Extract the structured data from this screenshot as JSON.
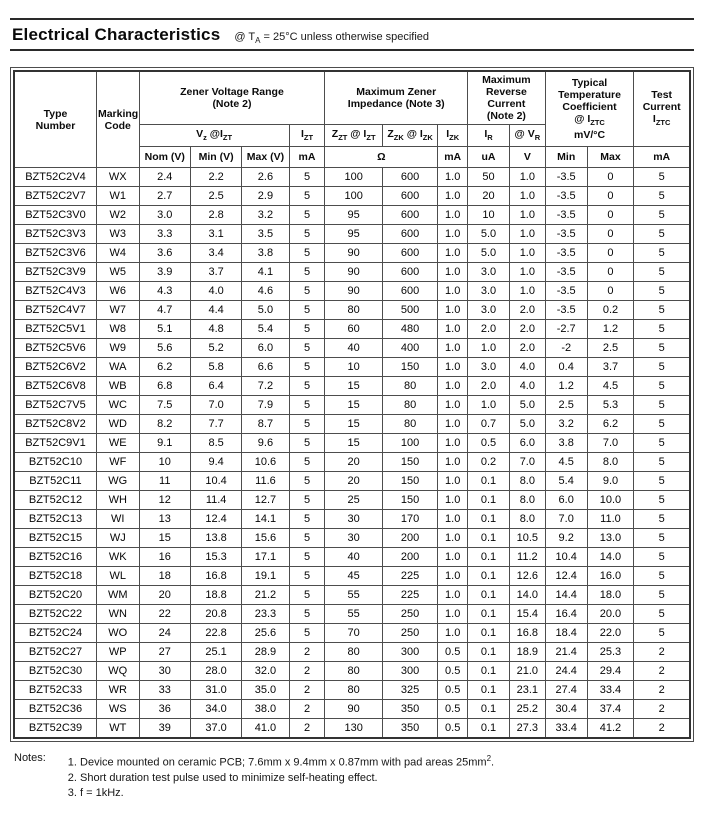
{
  "header": {
    "title": "Electrical Characteristics",
    "condition": [
      [
        [
          "@ T",
          0
        ],
        [
          "A",
          1
        ],
        [
          " = 25°C unless otherwise specified",
          0
        ]
      ]
    ]
  },
  "table": {
    "headers": {
      "type_number": [
        [
          [
            "Type",
            0
          ]
        ],
        [
          [
            "Number",
            0
          ]
        ]
      ],
      "marking_code": [
        [
          [
            "Marking",
            0
          ]
        ],
        [
          [
            "Code",
            0
          ]
        ]
      ],
      "zener_voltage_range": [
        [
          [
            "Zener Voltage Range",
            0
          ]
        ],
        [
          [
            "(Note 2)",
            0
          ]
        ]
      ],
      "max_zener_impedance": [
        [
          [
            "Maximum Zener",
            0
          ]
        ],
        [
          [
            "Impedance (Note 3)",
            0
          ]
        ]
      ],
      "max_reverse_current": [
        [
          [
            "Maximum",
            0
          ]
        ],
        [
          [
            "Reverse",
            0
          ]
        ],
        [
          [
            "Current",
            0
          ]
        ],
        [
          [
            "(Note 2)",
            0
          ]
        ]
      ],
      "typ_temp_coefficient": [
        [
          [
            "Typical",
            0
          ]
        ],
        [
          [
            "Temperature",
            0
          ]
        ],
        [
          [
            "Coefficient",
            0
          ]
        ],
        [
          [
            "@ I",
            0
          ],
          [
            "ZTC",
            1
          ]
        ],
        [
          [
            "mV/°C",
            0
          ]
        ]
      ],
      "test_current": [
        [
          [
            "Test",
            0
          ]
        ],
        [
          [
            "Current",
            0
          ]
        ],
        [
          [
            "I",
            0
          ],
          [
            "ZTC",
            1
          ]
        ]
      ],
      "vz_at_izt": [
        [
          [
            "V",
            0
          ],
          [
            "z",
            1
          ],
          [
            " @I",
            0
          ],
          [
            "ZT",
            1
          ]
        ]
      ],
      "izt": [
        [
          [
            "I",
            0
          ],
          [
            "ZT",
            1
          ]
        ]
      ],
      "zzt_at_izt": [
        [
          [
            "Z",
            0
          ],
          [
            "ZT",
            1
          ],
          [
            " @ I",
            0
          ],
          [
            "ZT",
            1
          ]
        ]
      ],
      "zzk_at_izk": [
        [
          [
            "Z",
            0
          ],
          [
            "ZK",
            1
          ],
          [
            " @ I",
            0
          ],
          [
            "ZK",
            1
          ]
        ]
      ],
      "izk": [
        [
          [
            "I",
            0
          ],
          [
            "ZK",
            1
          ]
        ]
      ],
      "ir": [
        [
          [
            "I",
            0
          ],
          [
            "R",
            1
          ]
        ]
      ],
      "at_vr": [
        [
          [
            "@ V",
            0
          ],
          [
            "R",
            1
          ]
        ]
      ]
    },
    "units": {
      "nom": "Nom (V)",
      "min": "Min (V)",
      "max": "Max (V)",
      "izt_ma": "mA",
      "ohm": "Ω",
      "izk_ma": "mA",
      "ir_ua": "uA",
      "vr_v": "V",
      "tc_min": "Min",
      "tc_max": "Max",
      "iztc_ma": "mA"
    },
    "rows": [
      [
        "BZT52C2V4",
        "WX",
        "2.4",
        "2.2",
        "2.6",
        "5",
        "100",
        "600",
        "1.0",
        "50",
        "1.0",
        "-3.5",
        "0",
        "5"
      ],
      [
        "BZT52C2V7",
        "W1",
        "2.7",
        "2.5",
        "2.9",
        "5",
        "100",
        "600",
        "1.0",
        "20",
        "1.0",
        "-3.5",
        "0",
        "5"
      ],
      [
        "BZT52C3V0",
        "W2",
        "3.0",
        "2.8",
        "3.2",
        "5",
        "95",
        "600",
        "1.0",
        "10",
        "1.0",
        "-3.5",
        "0",
        "5"
      ],
      [
        "BZT52C3V3",
        "W3",
        "3.3",
        "3.1",
        "3.5",
        "5",
        "95",
        "600",
        "1.0",
        "5.0",
        "1.0",
        "-3.5",
        "0",
        "5"
      ],
      [
        "BZT52C3V6",
        "W4",
        "3.6",
        "3.4",
        "3.8",
        "5",
        "90",
        "600",
        "1.0",
        "5.0",
        "1.0",
        "-3.5",
        "0",
        "5"
      ],
      [
        "BZT52C3V9",
        "W5",
        "3.9",
        "3.7",
        "4.1",
        "5",
        "90",
        "600",
        "1.0",
        "3.0",
        "1.0",
        "-3.5",
        "0",
        "5"
      ],
      [
        "BZT52C4V3",
        "W6",
        "4.3",
        "4.0",
        "4.6",
        "5",
        "90",
        "600",
        "1.0",
        "3.0",
        "1.0",
        "-3.5",
        "0",
        "5"
      ],
      [
        "BZT52C4V7",
        "W7",
        "4.7",
        "4.4",
        "5.0",
        "5",
        "80",
        "500",
        "1.0",
        "3.0",
        "2.0",
        "-3.5",
        "0.2",
        "5"
      ],
      [
        "BZT52C5V1",
        "W8",
        "5.1",
        "4.8",
        "5.4",
        "5",
        "60",
        "480",
        "1.0",
        "2.0",
        "2.0",
        "-2.7",
        "1.2",
        "5"
      ],
      [
        "BZT52C5V6",
        "W9",
        "5.6",
        "5.2",
        "6.0",
        "5",
        "40",
        "400",
        "1.0",
        "1.0",
        "2.0",
        "-2",
        "2.5",
        "5"
      ],
      [
        "BZT52C6V2",
        "WA",
        "6.2",
        "5.8",
        "6.6",
        "5",
        "10",
        "150",
        "1.0",
        "3.0",
        "4.0",
        "0.4",
        "3.7",
        "5"
      ],
      [
        "BZT52C6V8",
        "WB",
        "6.8",
        "6.4",
        "7.2",
        "5",
        "15",
        "80",
        "1.0",
        "2.0",
        "4.0",
        "1.2",
        "4.5",
        "5"
      ],
      [
        "BZT52C7V5",
        "WC",
        "7.5",
        "7.0",
        "7.9",
        "5",
        "15",
        "80",
        "1.0",
        "1.0",
        "5.0",
        "2.5",
        "5.3",
        "5"
      ],
      [
        "BZT52C8V2",
        "WD",
        "8.2",
        "7.7",
        "8.7",
        "5",
        "15",
        "80",
        "1.0",
        "0.7",
        "5.0",
        "3.2",
        "6.2",
        "5"
      ],
      [
        "BZT52C9V1",
        "WE",
        "9.1",
        "8.5",
        "9.6",
        "5",
        "15",
        "100",
        "1.0",
        "0.5",
        "6.0",
        "3.8",
        "7.0",
        "5"
      ],
      [
        "BZT52C10",
        "WF",
        "10",
        "9.4",
        "10.6",
        "5",
        "20",
        "150",
        "1.0",
        "0.2",
        "7.0",
        "4.5",
        "8.0",
        "5"
      ],
      [
        "BZT52C11",
        "WG",
        "11",
        "10.4",
        "11.6",
        "5",
        "20",
        "150",
        "1.0",
        "0.1",
        "8.0",
        "5.4",
        "9.0",
        "5"
      ],
      [
        "BZT52C12",
        "WH",
        "12",
        "11.4",
        "12.7",
        "5",
        "25",
        "150",
        "1.0",
        "0.1",
        "8.0",
        "6.0",
        "10.0",
        "5"
      ],
      [
        "BZT52C13",
        "WI",
        "13",
        "12.4",
        "14.1",
        "5",
        "30",
        "170",
        "1.0",
        "0.1",
        "8.0",
        "7.0",
        "11.0",
        "5"
      ],
      [
        "BZT52C15",
        "WJ",
        "15",
        "13.8",
        "15.6",
        "5",
        "30",
        "200",
        "1.0",
        "0.1",
        "10.5",
        "9.2",
        "13.0",
        "5"
      ],
      [
        "BZT52C16",
        "WK",
        "16",
        "15.3",
        "17.1",
        "5",
        "40",
        "200",
        "1.0",
        "0.1",
        "11.2",
        "10.4",
        "14.0",
        "5"
      ],
      [
        "BZT52C18",
        "WL",
        "18",
        "16.8",
        "19.1",
        "5",
        "45",
        "225",
        "1.0",
        "0.1",
        "12.6",
        "12.4",
        "16.0",
        "5"
      ],
      [
        "BZT52C20",
        "WM",
        "20",
        "18.8",
        "21.2",
        "5",
        "55",
        "225",
        "1.0",
        "0.1",
        "14.0",
        "14.4",
        "18.0",
        "5"
      ],
      [
        "BZT52C22",
        "WN",
        "22",
        "20.8",
        "23.3",
        "5",
        "55",
        "250",
        "1.0",
        "0.1",
        "15.4",
        "16.4",
        "20.0",
        "5"
      ],
      [
        "BZT52C24",
        "WO",
        "24",
        "22.8",
        "25.6",
        "5",
        "70",
        "250",
        "1.0",
        "0.1",
        "16.8",
        "18.4",
        "22.0",
        "5"
      ],
      [
        "BZT52C27",
        "WP",
        "27",
        "25.1",
        "28.9",
        "2",
        "80",
        "300",
        "0.5",
        "0.1",
        "18.9",
        "21.4",
        "25.3",
        "2"
      ],
      [
        "BZT52C30",
        "WQ",
        "30",
        "28.0",
        "32.0",
        "2",
        "80",
        "300",
        "0.5",
        "0.1",
        "21.0",
        "24.4",
        "29.4",
        "2"
      ],
      [
        "BZT52C33",
        "WR",
        "33",
        "31.0",
        "35.0",
        "2",
        "80",
        "325",
        "0.5",
        "0.1",
        "23.1",
        "27.4",
        "33.4",
        "2"
      ],
      [
        "BZT52C36",
        "WS",
        "36",
        "34.0",
        "38.0",
        "2",
        "90",
        "350",
        "0.5",
        "0.1",
        "25.2",
        "30.4",
        "37.4",
        "2"
      ],
      [
        "BZT52C39",
        "WT",
        "39",
        "37.0",
        "41.0",
        "2",
        "130",
        "350",
        "0.5",
        "0.1",
        "27.3",
        "33.4",
        "41.2",
        "2"
      ]
    ]
  },
  "notes": {
    "label": "Notes:",
    "items": [
      [
        [
          [
            "1. Device mounted on ceramic PCB; 7.6mm x 9.4mm x 0.87mm with pad areas 25mm",
            0
          ],
          [
            "2",
            2
          ],
          [
            ".",
            0
          ]
        ]
      ],
      [
        [
          [
            "2. Short duration test pulse used to minimize self-heating effect.",
            0
          ]
        ]
      ],
      [
        [
          [
            "3. f = 1kHz.",
            0
          ]
        ]
      ]
    ]
  }
}
